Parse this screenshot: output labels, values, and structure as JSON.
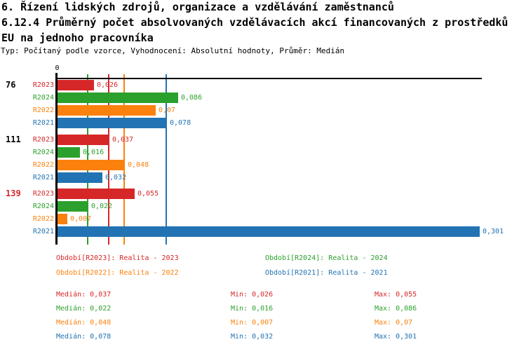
{
  "title": {
    "line1": "6. Řízení lidských zdrojů, organizace a vzdělávání zaměstnanců",
    "line2": "6.12.4 Průměrný počet absolvovaných vzdělávacích akcí financovaných z prostředků",
    "line3": "EU na jednoho pracovníka",
    "subtitle": "Typ: Počítaný podle vzorce, Vyhodnocení: Absolutní hodnoty, Průměr: Medián"
  },
  "colors": {
    "red": "#d62728",
    "green": "#2ca02c",
    "orange": "#fb810e",
    "blue": "#2273b3",
    "axis": "#000000",
    "background": "#ffffff"
  },
  "chart_data": {
    "type": "bar",
    "orientation": "horizontal",
    "title": "6.12.4 Průměrný počet absolvovaných vzdělávacích akcí financovaných z prostředků EU na jednoho pracovníka",
    "x_axis": {
      "zero_label": "0",
      "xlim": [
        0,
        0.304
      ],
      "grid": "median-lines-only"
    },
    "series_order": [
      "R2023",
      "R2024",
      "R2022",
      "R2021"
    ],
    "groups": [
      {
        "label": "76",
        "label_color": "#000000",
        "bars": [
          {
            "series": "R2023",
            "color": "#d62728",
            "value": 0.026,
            "display": "0,026"
          },
          {
            "series": "R2024",
            "color": "#2ca02c",
            "value": 0.086,
            "display": "0,086"
          },
          {
            "series": "R2022",
            "color": "#fb810e",
            "value": 0.07,
            "display": "0,07"
          },
          {
            "series": "R2021",
            "color": "#2273b3",
            "value": 0.078,
            "display": "0,078"
          }
        ]
      },
      {
        "label": "111",
        "label_color": "#000000",
        "bars": [
          {
            "series": "R2023",
            "color": "#d62728",
            "value": 0.037,
            "display": "0,037"
          },
          {
            "series": "R2024",
            "color": "#2ca02c",
            "value": 0.016,
            "display": "0,016"
          },
          {
            "series": "R2022",
            "color": "#fb810e",
            "value": 0.048,
            "display": "0,048"
          },
          {
            "series": "R2021",
            "color": "#2273b3",
            "value": 0.032,
            "display": "0,032"
          }
        ]
      },
      {
        "label": "139",
        "label_color": "#d62728",
        "bars": [
          {
            "series": "R2023",
            "color": "#d62728",
            "value": 0.055,
            "display": "0,055"
          },
          {
            "series": "R2024",
            "color": "#2ca02c",
            "value": 0.022,
            "display": "0,022"
          },
          {
            "series": "R2022",
            "color": "#fb810e",
            "value": 0.007,
            "display": "0,007"
          },
          {
            "series": "R2021",
            "color": "#2273b3",
            "value": 0.301,
            "display": "0,301"
          }
        ]
      }
    ],
    "median_lines": [
      {
        "series": "R2024",
        "color": "#2ca02c",
        "value": 0.022
      },
      {
        "series": "R2023",
        "color": "#d62728",
        "value": 0.037
      },
      {
        "series": "R2022",
        "color": "#fb810e",
        "value": 0.048
      },
      {
        "series": "R2021",
        "color": "#2273b3",
        "value": 0.078
      }
    ]
  },
  "legend": {
    "items": [
      {
        "series": "R2023",
        "label": "Období[R2023]: Realita - 2023",
        "color": "#d62728"
      },
      {
        "series": "R2024",
        "label": "Období[R2024]: Realita - 2024",
        "color": "#2ca02c"
      },
      {
        "series": "R2022",
        "label": "Období[R2022]: Realita - 2022",
        "color": "#fb810e"
      },
      {
        "series": "R2021",
        "label": "Období[R2021]: Realita - 2021",
        "color": "#2273b3"
      }
    ]
  },
  "stats": {
    "rows": [
      {
        "series": "R2023",
        "color": "#d62728",
        "median": "Medián: 0,037",
        "min": "Min: 0,026",
        "max": "Max: 0,055"
      },
      {
        "series": "R2024",
        "color": "#2ca02c",
        "median": "Medián: 0,022",
        "min": "Min: 0,016",
        "max": "Max: 0,086"
      },
      {
        "series": "R2022",
        "color": "#fb810e",
        "median": "Medián: 0,048",
        "min": "Min: 0,007",
        "max": "Max: 0,07"
      },
      {
        "series": "R2021",
        "color": "#2273b3",
        "median": "Medián: 0,078",
        "min": "Min: 0,032",
        "max": "Max: 0,301"
      }
    ]
  }
}
